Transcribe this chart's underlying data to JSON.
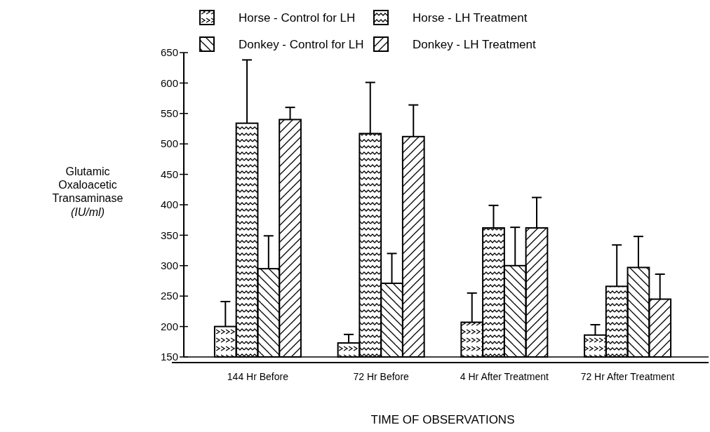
{
  "chart_data": {
    "type": "bar",
    "xlabel": "TIME OF OBSERVATIONS",
    "ylabel": "Glutamic Oxaloacetic Transaminase (IU/ml)",
    "categories": [
      "144 Hr Before",
      "72 Hr Before",
      "4 Hr After Treatment",
      "72 Hr After Treatment"
    ],
    "series": [
      {
        "name": "Horse - Control for LH",
        "color": "#000000",
        "values": [
          200,
          173,
          207,
          186
        ],
        "errors": [
          [
            200,
            241
          ],
          [
            173,
            187
          ],
          [
            207,
            255
          ],
          [
            186,
            203
          ]
        ]
      },
      {
        "name": "Horse - LH Treatment",
        "color": "#000000",
        "values": [
          534,
          517,
          362,
          266
        ],
        "errors": [
          [
            534,
            638
          ],
          [
            517,
            601
          ],
          [
            362,
            399
          ],
          [
            266,
            334
          ]
        ]
      },
      {
        "name": "Donkey - Control for LH",
        "color": "#000000",
        "values": [
          295,
          271,
          300,
          297
        ],
        "errors": [
          [
            295,
            349
          ],
          [
            271,
            320
          ],
          [
            300,
            363
          ],
          [
            297,
            348
          ]
        ]
      },
      {
        "name": "Donkey - LH Treatment",
        "color": "#000000",
        "values": [
          540,
          512,
          362,
          245
        ],
        "errors": [
          [
            540,
            560
          ],
          [
            512,
            564
          ],
          [
            362,
            412
          ],
          [
            245,
            286
          ]
        ]
      }
    ],
    "ylim": [
      150,
      650
    ],
    "yticks": [
      150,
      200,
      250,
      300,
      350,
      400,
      450,
      500,
      550,
      600,
      650
    ],
    "grid": false,
    "legend": "top"
  }
}
